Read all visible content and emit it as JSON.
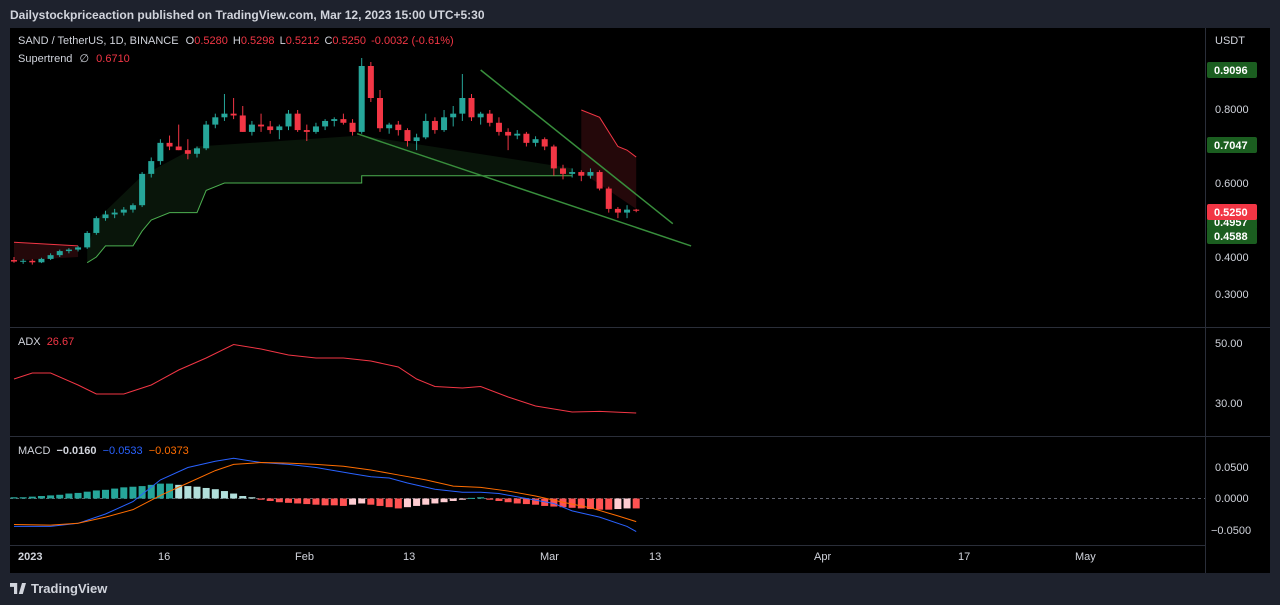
{
  "header": {
    "published": "Dailystockpriceaction published on TradingView.com, Mar 12, 2023 15:00 UTC+5:30"
  },
  "main_legend": {
    "symbol": "SAND / TetherUS, 1D, BINANCE",
    "o_label": "O",
    "o": "0.5280",
    "h_label": "H",
    "h": "0.5298",
    "l_label": "L",
    "l": "0.5212",
    "c_label": "C",
    "c": "0.5250",
    "change": "-0.0032 (-0.61%)",
    "supertrend_label": "Supertrend",
    "supertrend_sym": "∅",
    "supertrend_value": "0.6710"
  },
  "price_axis": {
    "currency": "USDT",
    "ticks": [
      "0.8000",
      "0.6000",
      "0.4000",
      "0.3000"
    ],
    "badges": [
      {
        "label": "0.9096",
        "kind": "green"
      },
      {
        "label": "0.7047",
        "kind": "green"
      },
      {
        "label": "0.5250",
        "kind": "red"
      },
      {
        "label": "0.4957",
        "kind": "green"
      },
      {
        "label": "0.4588",
        "kind": "green"
      }
    ]
  },
  "adx": {
    "label": "ADX",
    "value": "26.67",
    "ticks": [
      "50.00",
      "30.00"
    ]
  },
  "macd": {
    "label": "MACD",
    "hist": "−0.0160",
    "macd": "−0.0533",
    "signal": "−0.0373",
    "ticks": [
      "0.0500",
      "0.0000",
      "−0.0500"
    ]
  },
  "time_axis": [
    "2023",
    "16",
    "Feb",
    "13",
    "Mar",
    "13",
    "Apr",
    "17",
    "May"
  ],
  "footer": {
    "brand": "TradingView"
  },
  "colors": {
    "up": "#26a69a",
    "down": "#f23645",
    "supertrend_up": "#4caf50",
    "adx": "#f23645",
    "macd": "#2962ff",
    "signal": "#ff6d00",
    "trendline": "#388e3c"
  },
  "chart_data": [
    {
      "type": "candlestick",
      "title": "SAND / TetherUS, 1D, BINANCE",
      "x_start": "2022-12-30",
      "candles": [
        [
          0.392,
          0.4,
          0.385,
          0.388
        ],
        [
          0.388,
          0.395,
          0.382,
          0.39
        ],
        [
          0.39,
          0.394,
          0.38,
          0.386
        ],
        [
          0.386,
          0.398,
          0.384,
          0.395
        ],
        [
          0.395,
          0.41,
          0.392,
          0.405
        ],
        [
          0.405,
          0.42,
          0.4,
          0.416
        ],
        [
          0.416,
          0.424,
          0.41,
          0.42
        ],
        [
          0.42,
          0.43,
          0.415,
          0.426
        ],
        [
          0.426,
          0.47,
          0.422,
          0.465
        ],
        [
          0.465,
          0.51,
          0.46,
          0.505
        ],
        [
          0.505,
          0.525,
          0.498,
          0.515
        ],
        [
          0.515,
          0.53,
          0.505,
          0.52
        ],
        [
          0.52,
          0.535,
          0.512,
          0.528
        ],
        [
          0.528,
          0.545,
          0.52,
          0.54
        ],
        [
          0.54,
          0.63,
          0.535,
          0.625
        ],
        [
          0.625,
          0.67,
          0.615,
          0.66
        ],
        [
          0.66,
          0.72,
          0.65,
          0.71
        ],
        [
          0.71,
          0.73,
          0.69,
          0.7
        ],
        [
          0.7,
          0.76,
          0.69,
          0.69
        ],
        [
          0.69,
          0.72,
          0.665,
          0.68
        ],
        [
          0.68,
          0.7,
          0.67,
          0.695
        ],
        [
          0.695,
          0.77,
          0.69,
          0.76
        ],
        [
          0.76,
          0.79,
          0.75,
          0.78
        ],
        [
          0.78,
          0.84,
          0.77,
          0.79
        ],
        [
          0.79,
          0.83,
          0.775,
          0.785
        ],
        [
          0.785,
          0.81,
          0.74,
          0.74
        ],
        [
          0.74,
          0.77,
          0.73,
          0.76
        ],
        [
          0.76,
          0.79,
          0.74,
          0.755
        ],
        [
          0.755,
          0.77,
          0.735,
          0.745
        ],
        [
          0.745,
          0.76,
          0.72,
          0.755
        ],
        [
          0.755,
          0.8,
          0.745,
          0.79
        ],
        [
          0.79,
          0.8,
          0.74,
          0.745
        ],
        [
          0.745,
          0.76,
          0.715,
          0.74
        ],
        [
          0.74,
          0.765,
          0.735,
          0.755
        ],
        [
          0.755,
          0.775,
          0.745,
          0.77
        ],
        [
          0.77,
          0.78,
          0.755,
          0.775
        ],
        [
          0.775,
          0.79,
          0.76,
          0.765
        ],
        [
          0.765,
          0.775,
          0.73,
          0.74
        ],
        [
          0.74,
          0.93,
          0.735,
          0.91
        ],
        [
          0.91,
          0.92,
          0.82,
          0.83
        ],
        [
          0.83,
          0.85,
          0.74,
          0.75
        ],
        [
          0.75,
          0.765,
          0.735,
          0.76
        ],
        [
          0.76,
          0.77,
          0.73,
          0.745
        ],
        [
          0.745,
          0.75,
          0.7,
          0.715
        ],
        [
          0.715,
          0.735,
          0.69,
          0.725
        ],
        [
          0.725,
          0.79,
          0.72,
          0.77
        ],
        [
          0.77,
          0.78,
          0.735,
          0.745
        ],
        [
          0.745,
          0.8,
          0.74,
          0.78
        ],
        [
          0.78,
          0.81,
          0.755,
          0.79
        ],
        [
          0.79,
          0.89,
          0.77,
          0.83
        ],
        [
          0.83,
          0.84,
          0.77,
          0.78
        ],
        [
          0.78,
          0.795,
          0.76,
          0.79
        ],
        [
          0.79,
          0.8,
          0.755,
          0.765
        ],
        [
          0.765,
          0.78,
          0.73,
          0.74
        ],
        [
          0.74,
          0.75,
          0.69,
          0.73
        ],
        [
          0.73,
          0.745,
          0.72,
          0.735
        ],
        [
          0.735,
          0.74,
          0.7,
          0.71
        ],
        [
          0.71,
          0.728,
          0.7,
          0.72
        ],
        [
          0.72,
          0.725,
          0.69,
          0.7
        ],
        [
          0.7,
          0.705,
          0.62,
          0.64
        ],
        [
          0.64,
          0.65,
          0.61,
          0.625
        ],
        [
          0.625,
          0.64,
          0.615,
          0.63
        ],
        [
          0.63,
          0.635,
          0.605,
          0.62
        ],
        [
          0.62,
          0.64,
          0.612,
          0.63
        ],
        [
          0.63,
          0.635,
          0.58,
          0.585
        ],
        [
          0.585,
          0.59,
          0.52,
          0.53
        ],
        [
          0.53,
          0.535,
          0.505,
          0.52
        ],
        [
          0.52,
          0.54,
          0.505,
          0.528
        ],
        [
          0.528,
          0.53,
          0.521,
          0.525
        ]
      ]
    },
    {
      "type": "line",
      "title": "ADX",
      "series": [
        {
          "name": "ADX",
          "x": [
            0,
            10,
            20,
            30,
            40,
            50,
            60,
            68
          ],
          "values": [
            38,
            34,
            44,
            49,
            43,
            36,
            27,
            26.67
          ]
        }
      ]
    },
    {
      "type": "bar",
      "title": "MACD",
      "series": [
        {
          "name": "Histogram",
          "values": [
            0.002,
            0.004,
            0.006,
            0.009,
            0.012,
            0.016,
            0.018,
            0.022,
            0.026,
            0.03,
            0.028,
            0.022,
            0.018,
            0.014,
            0.008,
            0.003,
            -0.002,
            -0.006,
            -0.008,
            -0.012,
            -0.015,
            -0.014,
            -0.012,
            -0.008,
            -0.004,
            0.0,
            0.002,
            -0.004,
            -0.008,
            -0.012,
            -0.014,
            -0.016
          ]
        },
        {
          "name": "MACD",
          "values": [
            -0.04,
            -0.03,
            -0.01,
            0.02,
            0.055,
            0.075,
            0.07,
            0.055,
            0.04,
            0.03,
            0.02,
            0.01,
            0.015,
            0.005,
            -0.002,
            -0.002,
            -0.005,
            -0.015,
            -0.025,
            -0.035,
            -0.05,
            -0.0533
          ]
        },
        {
          "name": "Signal",
          "values": [
            -0.042,
            -0.04,
            -0.03,
            -0.015,
            0.01,
            0.035,
            0.06,
            0.065,
            0.06,
            0.05,
            0.04,
            0.03,
            0.02,
            0.01,
            0.005,
            0.005,
            0.0,
            -0.008,
            -0.015,
            -0.025,
            -0.032,
            -0.0373
          ]
        }
      ]
    }
  ]
}
